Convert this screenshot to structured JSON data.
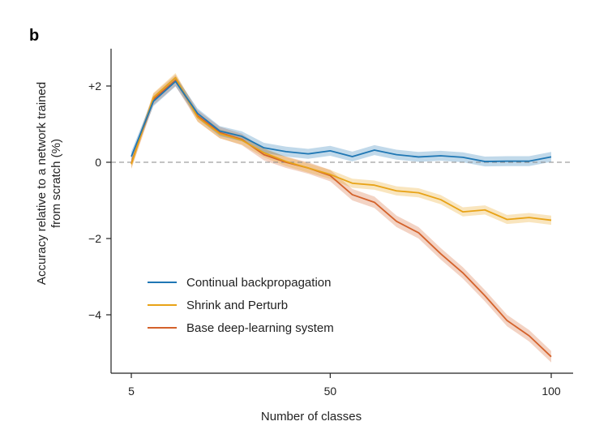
{
  "chart_data": {
    "type": "line",
    "panel_label": "b",
    "title": "",
    "xlabel": "Number of classes",
    "ylabel_lines": [
      "Accuracy relative to a network trained",
      "from scratch (%)"
    ],
    "xlim": [
      5,
      100
    ],
    "ylim": [
      -5.5,
      3.0
    ],
    "xticks": [
      5,
      50,
      100
    ],
    "xtick_labels": [
      "5",
      "50",
      "100"
    ],
    "yticks": [
      2,
      0,
      -2,
      -4
    ],
    "ytick_labels": [
      "+2",
      "0",
      "−2",
      "−4"
    ],
    "reference_line": 0,
    "legend_position": "lower-left",
    "x": [
      5,
      10,
      15,
      20,
      25,
      30,
      35,
      40,
      45,
      50,
      55,
      60,
      65,
      70,
      75,
      80,
      85,
      90,
      95,
      100
    ],
    "series": [
      {
        "name": "Continual backpropagation",
        "color": "#1f77b4",
        "values": [
          0.15,
          1.6,
          2.12,
          1.28,
          0.82,
          0.68,
          0.38,
          0.28,
          0.22,
          0.3,
          0.15,
          0.32,
          0.2,
          0.14,
          0.17,
          0.13,
          0.02,
          0.03,
          0.03,
          0.14
        ],
        "band": 0.13
      },
      {
        "name": "Shrink and Perturb",
        "color": "#e8a317",
        "values": [
          -0.05,
          1.7,
          2.22,
          1.18,
          0.75,
          0.58,
          0.25,
          0.02,
          -0.15,
          -0.32,
          -0.55,
          -0.6,
          -0.75,
          -0.8,
          -0.98,
          -1.3,
          -1.25,
          -1.5,
          -1.45,
          -1.52
        ],
        "band": 0.12
      },
      {
        "name": "Base deep-learning system",
        "color": "#d4622b",
        "values": [
          -0.02,
          1.65,
          2.15,
          1.22,
          0.78,
          0.6,
          0.2,
          0.0,
          -0.15,
          -0.35,
          -0.85,
          -1.05,
          -1.55,
          -1.85,
          -2.4,
          -2.9,
          -3.5,
          -4.15,
          -4.55,
          -5.1
        ],
        "band": 0.15
      }
    ]
  },
  "colors": {
    "axis": "#222222",
    "reference_line": "#888888"
  }
}
